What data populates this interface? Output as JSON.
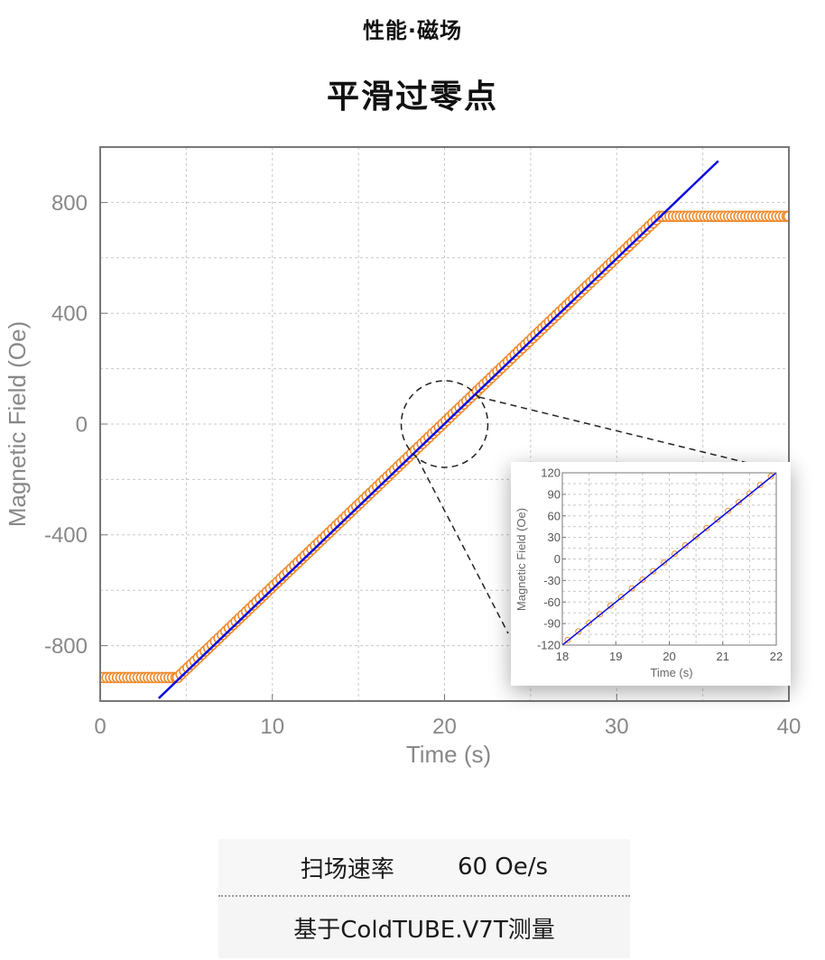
{
  "header": {
    "subtitle": "性能·磁场",
    "title": "平滑过零点"
  },
  "chart_data": [
    {
      "type": "scatter",
      "xlabel": "Time (s)",
      "ylabel": "Magnetic Field (Oe)",
      "xlim": [
        0,
        40
      ],
      "ylim": [
        -1000,
        1000
      ],
      "x_ticks": [
        0,
        10,
        20,
        30,
        40
      ],
      "y_ticks": [
        -800,
        -400,
        0,
        400,
        800
      ],
      "grid": true,
      "series": [
        {
          "marker": "open-circle",
          "color": "#f08a2c",
          "x": [
            0,
            4.5,
            32.5,
            40
          ],
          "y": [
            -915,
            -915,
            750,
            750
          ],
          "step": 0.2
        },
        {
          "marker": "line",
          "color": "#0a0ae0",
          "x": [
            3.4,
            35.9
          ],
          "y": [
            -990,
            950
          ]
        }
      ],
      "annotation": {
        "type": "zoom-circle",
        "center": [
          20,
          0
        ]
      }
    },
    {
      "type": "scatter",
      "inset": true,
      "xlabel": "Time (s)",
      "ylabel": "Magnetic Field (Oe)",
      "xlim": [
        18,
        22
      ],
      "ylim": [
        -120,
        120
      ],
      "x_ticks": [
        18,
        19,
        20,
        21,
        22
      ],
      "y_ticks": [
        -120,
        -90,
        -60,
        -30,
        0,
        30,
        60,
        90,
        120
      ],
      "grid": true,
      "series": [
        {
          "marker": "open-circle",
          "color": "#f08a2c",
          "x": [
            18.1,
            18.3,
            18.5,
            18.7,
            18.9,
            19.1,
            19.3,
            19.5,
            19.7,
            19.9,
            20.1,
            20.3,
            20.5,
            20.7,
            20.9,
            21.1,
            21.3,
            21.5,
            21.7,
            21.9
          ],
          "y": [
            -113,
            -101,
            -89,
            -77,
            -65,
            -53,
            -41,
            -29,
            -17,
            -5,
            7,
            19,
            31,
            43,
            55,
            67,
            79,
            91,
            103,
            115
          ]
        },
        {
          "marker": "line",
          "color": "#0a0ae0",
          "x": [
            18,
            22
          ],
          "y": [
            -120,
            120
          ]
        }
      ]
    }
  ],
  "spec": {
    "label": "扫场速率",
    "value": "60 Oe/s",
    "note": "基于ColdTUBE.V7T测量"
  }
}
